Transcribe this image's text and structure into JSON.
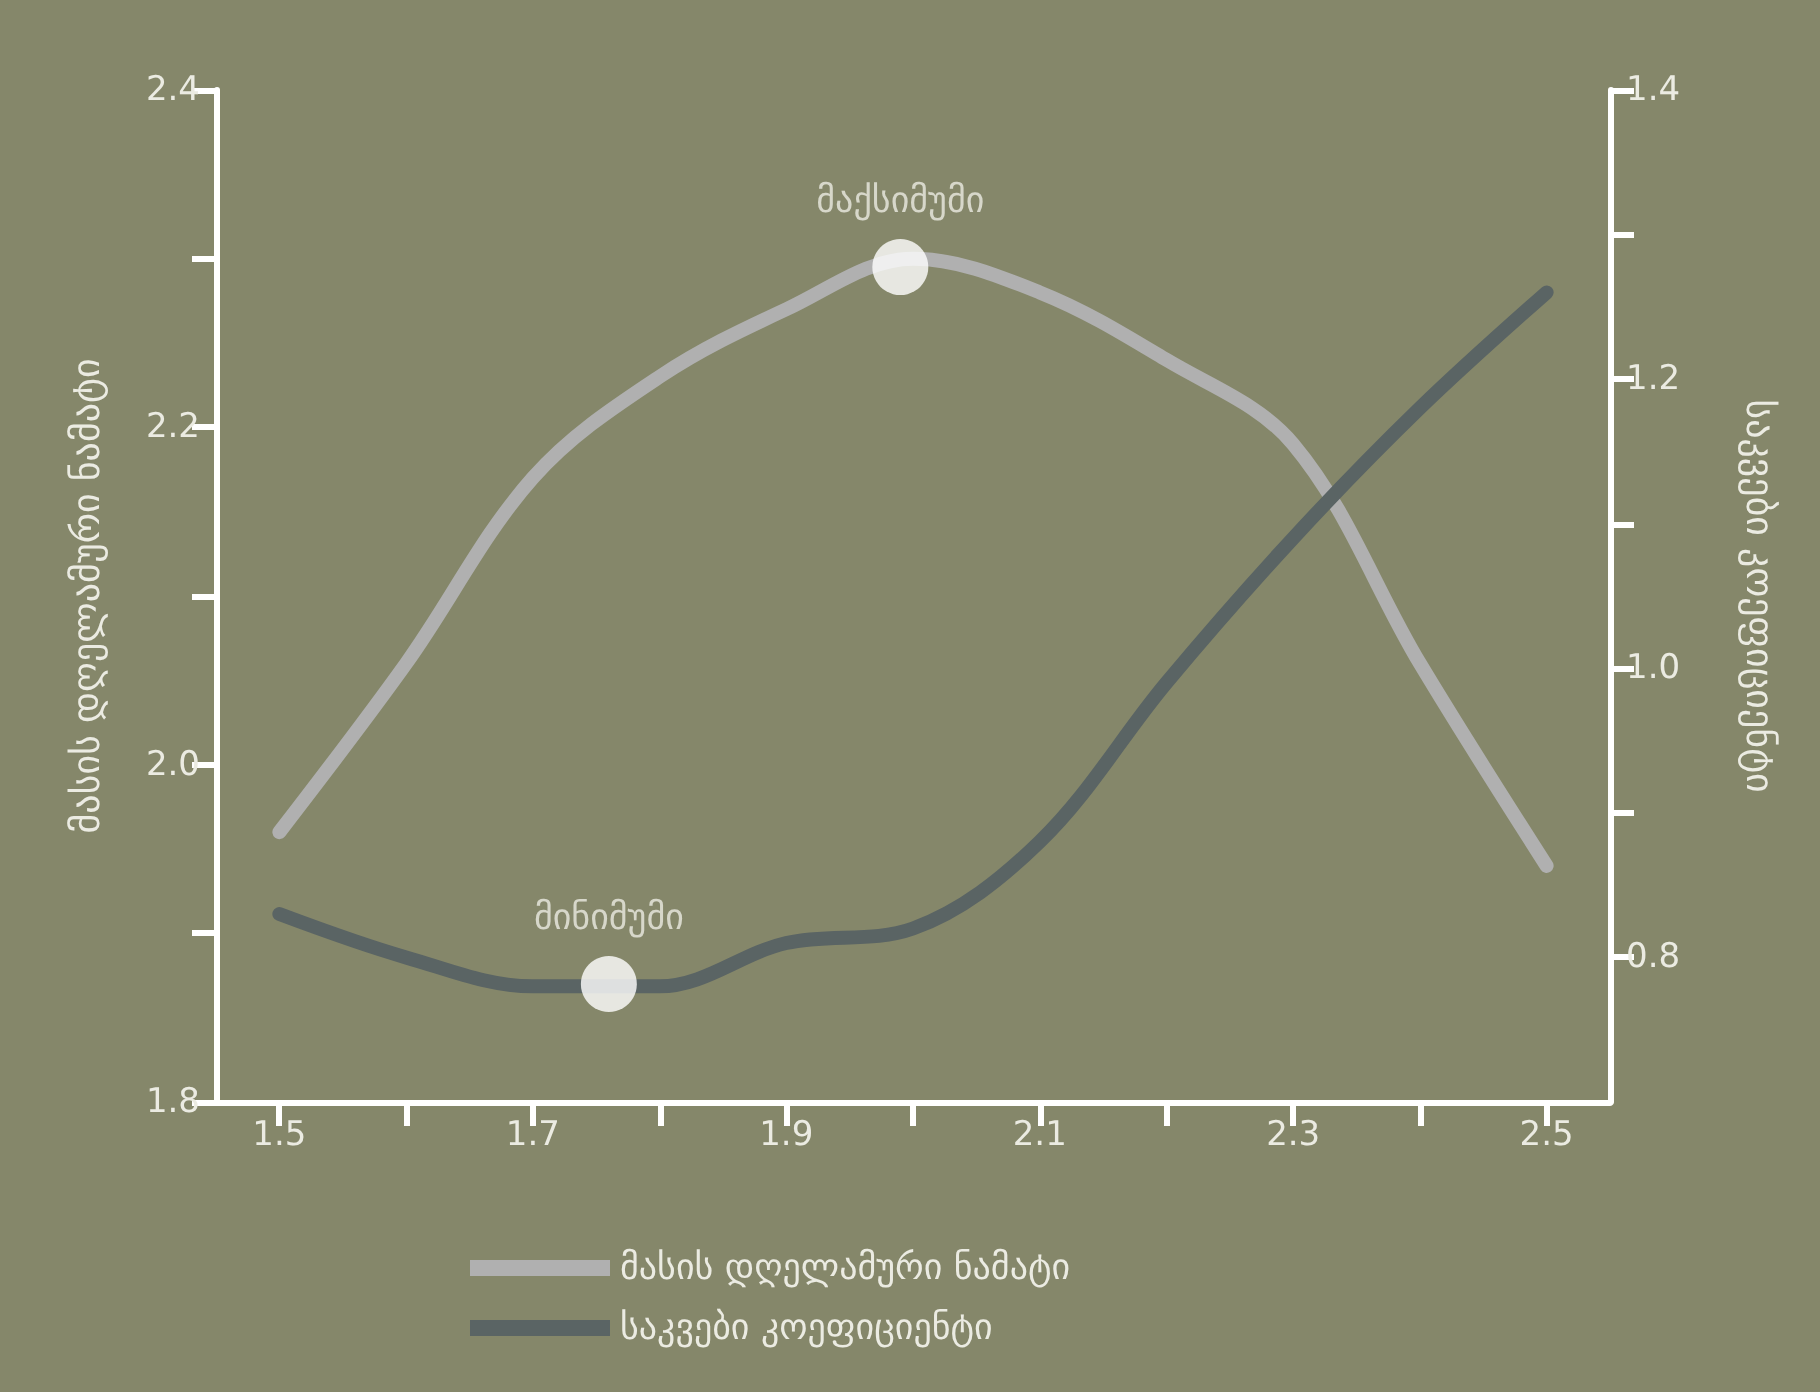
{
  "chart_data": {
    "type": "line",
    "xlabel": null,
    "ylabel": "მასის დღელამური ნამატი",
    "y2label": "საკვები კოეფიციენტი",
    "x": [
      1.5,
      1.6,
      1.7,
      1.8,
      1.9,
      2.0,
      2.1,
      2.2,
      2.3,
      2.4,
      2.5
    ],
    "series": [
      {
        "name": "მასის დღელამური ნამატი",
        "color": "#b0b0b0",
        "values": [
          1.96,
          2.06,
          2.17,
          2.23,
          2.27,
          2.3,
          2.28,
          2.24,
          2.19,
          2.06,
          1.94
        ]
      },
      {
        "name": "საკვები კოეფიციენტი",
        "color": "#5a6464",
        "axis": "y2",
        "values": [
          0.83,
          0.8,
          0.78,
          0.78,
          0.81,
          0.82,
          0.88,
          0.99,
          1.09,
          1.18,
          1.26
        ]
      }
    ],
    "xlim": [
      1.45,
      2.55
    ],
    "xticks": [
      1.5,
      {
        "value": 1.6,
        "label": null
      },
      1.7,
      {
        "value": 1.8,
        "label": null
      },
      1.9,
      {
        "value": 2.0,
        "label": null
      },
      2.1,
      {
        "value": 2.2,
        "label": null
      },
      2.3,
      {
        "value": 2.4,
        "label": null
      },
      2.5
    ],
    "ylim": [
      1.8,
      2.4
    ],
    "yticks": [
      {
        "value": 1.8,
        "label": "1.8"
      },
      {
        "value": 1.9,
        "label": null
      },
      {
        "value": 2.0,
        "label": "2.0"
      },
      {
        "value": 2.1,
        "label": null
      },
      {
        "value": 2.2,
        "label": "2.2"
      },
      {
        "value": 2.3,
        "label": null
      },
      {
        "value": 2.4,
        "label": "2.4"
      }
    ],
    "y2lim": [
      0.7,
      1.4
    ],
    "y2ticks": [
      {
        "value": 0.8,
        "label": "0.8"
      },
      {
        "value": 0.9,
        "label": null
      },
      {
        "value": 1.0,
        "label": "1.0"
      },
      {
        "value": 1.1,
        "label": null
      },
      {
        "value": 1.2,
        "label": "1.2"
      },
      {
        "value": 1.3,
        "label": null
      },
      {
        "value": 1.4,
        "label": "1.4"
      }
    ],
    "annotations": [
      {
        "text": "მაქსიმუმი",
        "x": 1.99,
        "y": 2.295
      },
      {
        "text": "მინიმუმი",
        "x": 1.76,
        "y": 1.87
      }
    ],
    "grid": false,
    "legend": "bottom",
    "marker": "none",
    "line_style": "solid"
  }
}
